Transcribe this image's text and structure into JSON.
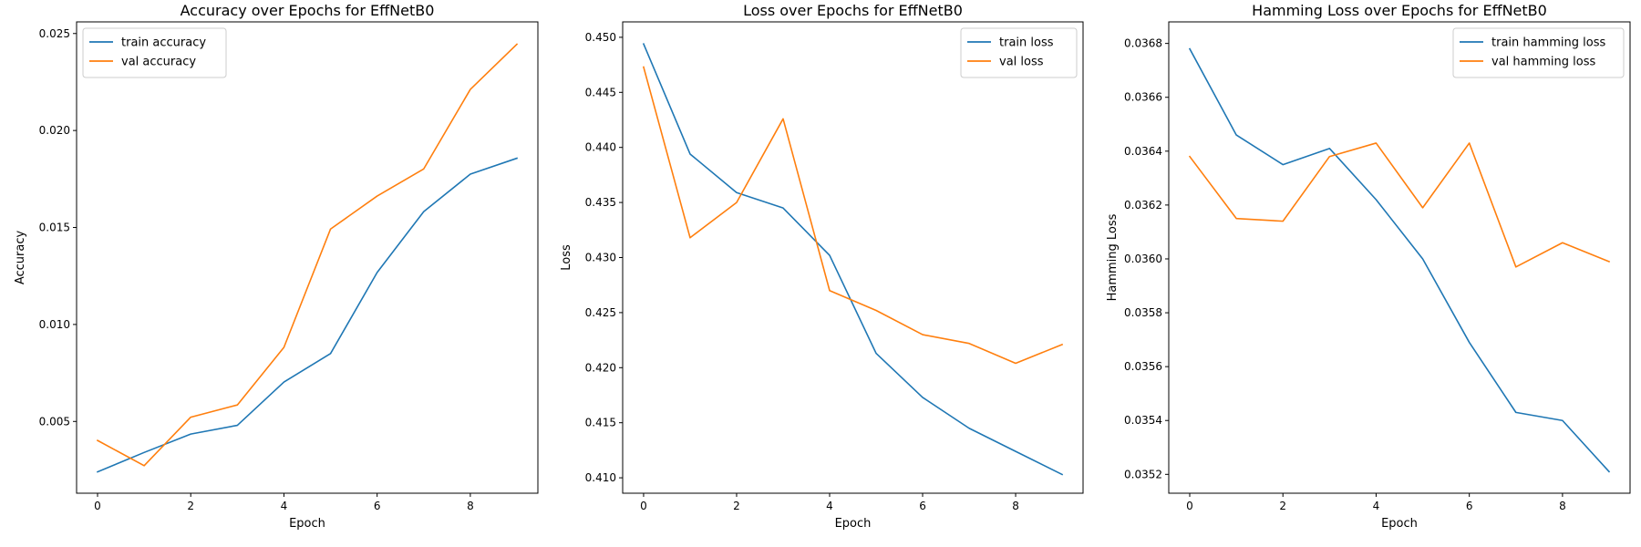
{
  "colors": {
    "train": "#1f77b4",
    "val": "#ff7f0e"
  },
  "chart_data": [
    {
      "type": "line",
      "title": "Accuracy over Epochs for EffNetB0",
      "xlabel": "Epoch",
      "ylabel": "Accuracy",
      "x": [
        0,
        1,
        2,
        3,
        4,
        5,
        6,
        7,
        8,
        9
      ],
      "xlim": [
        -0.45,
        9.45
      ],
      "ylim": [
        0.0013,
        0.0256
      ],
      "xticks": [
        "0",
        "2",
        "4",
        "6",
        "8"
      ],
      "yticks": [
        "0.005",
        "0.010",
        "0.015",
        "0.020",
        "0.025"
      ],
      "legend_position": "upper-left",
      "series": [
        {
          "name": "train accuracy",
          "color_key": "train",
          "values": [
            0.0024,
            0.0034,
            0.00435,
            0.0048,
            0.00703,
            0.0085,
            0.01268,
            0.01582,
            0.01775,
            0.01857
          ]
        },
        {
          "name": "val accuracy",
          "color_key": "val",
          "values": [
            0.00402,
            0.00272,
            0.00522,
            0.00585,
            0.00882,
            0.01492,
            0.01662,
            0.01802,
            0.02212,
            0.02445
          ]
        }
      ]
    },
    {
      "type": "line",
      "title": "Loss over Epochs for EffNetB0",
      "xlabel": "Epoch",
      "ylabel": "Loss",
      "x": [
        0,
        1,
        2,
        3,
        4,
        5,
        6,
        7,
        8,
        9
      ],
      "xlim": [
        -0.45,
        9.45
      ],
      "ylim": [
        0.4086,
        0.4514
      ],
      "xticks": [
        "0",
        "2",
        "4",
        "6",
        "8"
      ],
      "yticks": [
        "0.410",
        "0.415",
        "0.420",
        "0.425",
        "0.430",
        "0.435",
        "0.440",
        "0.445",
        "0.450"
      ],
      "legend_position": "upper-right",
      "series": [
        {
          "name": "train loss",
          "color_key": "train",
          "values": [
            0.4494,
            0.4394,
            0.4359,
            0.4345,
            0.4302,
            0.4213,
            0.4173,
            0.4145,
            0.4124,
            0.4103
          ]
        },
        {
          "name": "val loss",
          "color_key": "val",
          "values": [
            0.4473,
            0.4318,
            0.435,
            0.4426,
            0.427,
            0.4252,
            0.423,
            0.4222,
            0.4204,
            0.4221
          ]
        }
      ]
    },
    {
      "type": "line",
      "title": "Hamming Loss over Epochs for EffNetB0",
      "xlabel": "Epoch",
      "ylabel": "Hamming Loss",
      "x": [
        0,
        1,
        2,
        3,
        4,
        5,
        6,
        7,
        8,
        9
      ],
      "xlim": [
        -0.45,
        9.45
      ],
      "ylim": [
        0.03513,
        0.03688
      ],
      "xticks": [
        "0",
        "2",
        "4",
        "6",
        "8"
      ],
      "yticks": [
        "0.0352",
        "0.0354",
        "0.0356",
        "0.0358",
        "0.0360",
        "0.0362",
        "0.0364",
        "0.0366",
        "0.0368"
      ],
      "legend_position": "upper-right",
      "series": [
        {
          "name": "train hamming loss",
          "color_key": "train",
          "values": [
            0.03678,
            0.03646,
            0.03635,
            0.03641,
            0.03622,
            0.036,
            0.03569,
            0.03543,
            0.0354,
            0.03521
          ]
        },
        {
          "name": "val hamming loss",
          "color_key": "val",
          "values": [
            0.03638,
            0.03615,
            0.03614,
            0.03638,
            0.03643,
            0.03619,
            0.03643,
            0.03597,
            0.03606,
            0.03599
          ]
        }
      ]
    }
  ]
}
